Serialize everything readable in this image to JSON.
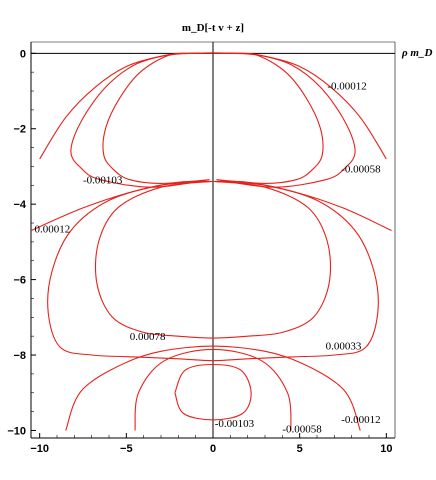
{
  "chart_data": {
    "type": "contour",
    "title": "m_D[-t v + z]",
    "xlabel": "",
    "ylabel": "",
    "horizontal_axis_name": "ρ m_D",
    "xlim": [
      -10.5,
      10.5
    ],
    "ylim": [
      -10.2,
      0.3
    ],
    "x_ticks": [
      -10,
      -5,
      0,
      5,
      10
    ],
    "y_ticks": [
      0,
      -2,
      -4,
      -6,
      -8,
      -10
    ],
    "x_tick_labels": [
      "−10",
      "−5",
      "0",
      "5",
      "10"
    ],
    "y_tick_labels": [
      "0",
      "−2",
      "−4",
      "−6",
      "−8",
      "−10"
    ],
    "grid": false,
    "line_color": "#e8201a",
    "contour_labels": [
      {
        "text": "-0.00012",
        "x": 6.6,
        "y": -0.85
      },
      {
        "text": "-0.00058",
        "x": 7.4,
        "y": -3.05
      },
      {
        "text": "-0.00103",
        "x": -7.5,
        "y": -3.35
      },
      {
        "text": "0.00012",
        "x": -10.3,
        "y": -4.65
      },
      {
        "text": "0.00078",
        "x": -4.8,
        "y": -7.5
      },
      {
        "text": "0.00033",
        "x": 6.5,
        "y": -7.75
      },
      {
        "text": "-0.00103",
        "x": 0.1,
        "y": -9.8
      },
      {
        "text": "-0.00058",
        "x": 4.0,
        "y": -9.95
      },
      {
        "text": "-0.00012",
        "x": 7.4,
        "y": -9.7
      }
    ],
    "contours": [
      {
        "level": "-0.00012 (upper)",
        "points": [
          [
            -10,
            -2.8
          ],
          [
            -8.5,
            -1.7
          ],
          [
            -6.8,
            -0.9
          ],
          [
            -5,
            -0.35
          ],
          [
            -3,
            -0.08
          ],
          [
            -1.2,
            0
          ],
          [
            1.2,
            0
          ],
          [
            3,
            -0.08
          ],
          [
            5,
            -0.35
          ],
          [
            6.8,
            -0.9
          ],
          [
            8.5,
            -1.7
          ],
          [
            10,
            -2.8
          ]
        ]
      },
      {
        "level": "-0.00058 (upper)",
        "points": [
          [
            -0.2,
            -3.35
          ],
          [
            -3.5,
            -3.55
          ],
          [
            -6.5,
            -3.35
          ],
          [
            -7.6,
            -3.05
          ],
          [
            -8.2,
            -2.6
          ],
          [
            -7.6,
            -1.8
          ],
          [
            -6.2,
            -0.9
          ],
          [
            -4.5,
            -0.3
          ],
          [
            -2.5,
            -0.03
          ],
          [
            -1.2,
            0
          ],
          [
            1.2,
            0
          ],
          [
            2.5,
            -0.03
          ],
          [
            4.5,
            -0.3
          ],
          [
            6.2,
            -0.9
          ],
          [
            7.6,
            -1.8
          ],
          [
            8.2,
            -2.6
          ],
          [
            7.6,
            -3.05
          ],
          [
            6.5,
            -3.35
          ],
          [
            3.5,
            -3.55
          ],
          [
            0.2,
            -3.35
          ]
        ]
      },
      {
        "level": "-0.00103 (upper)",
        "points": [
          [
            -0.2,
            -3.35
          ],
          [
            -3,
            -3.45
          ],
          [
            -4.8,
            -3.35
          ],
          [
            -5.7,
            -3.1
          ],
          [
            -6.3,
            -2.7
          ],
          [
            -6.2,
            -2.0
          ],
          [
            -5.4,
            -1.2
          ],
          [
            -4.2,
            -0.5
          ],
          [
            -2.6,
            -0.06
          ],
          [
            -1.2,
            0
          ],
          [
            1.2,
            0
          ],
          [
            2.6,
            -0.06
          ],
          [
            4.2,
            -0.5
          ],
          [
            5.4,
            -1.2
          ],
          [
            6.2,
            -2.0
          ],
          [
            6.3,
            -2.7
          ],
          [
            5.7,
            -3.1
          ],
          [
            4.8,
            -3.35
          ],
          [
            3,
            -3.45
          ],
          [
            0.2,
            -3.35
          ]
        ]
      },
      {
        "level": "0.00012",
        "points": [
          [
            -10.5,
            -4.7
          ],
          [
            -7.5,
            -4.1
          ],
          [
            -4.5,
            -3.65
          ],
          [
            -2,
            -3.42
          ],
          [
            0,
            -3.4
          ],
          [
            2,
            -3.42
          ],
          [
            4.5,
            -3.65
          ],
          [
            7.5,
            -4.1
          ],
          [
            10.3,
            -4.7
          ]
        ]
      },
      {
        "level": "0.00033",
        "points": [
          [
            -0.1,
            -3.4
          ],
          [
            -3,
            -3.5
          ],
          [
            -6,
            -3.9
          ],
          [
            -8.2,
            -4.7
          ],
          [
            -9.3,
            -5.8
          ],
          [
            -9.5,
            -6.9
          ],
          [
            -8.8,
            -7.8
          ],
          [
            -7,
            -8.0
          ],
          [
            -4.5,
            -8.05
          ],
          [
            -2,
            -8.1
          ],
          [
            0,
            -8.15
          ],
          [
            2,
            -8.1
          ],
          [
            4.5,
            -8.05
          ],
          [
            7,
            -8.0
          ],
          [
            8.8,
            -7.8
          ],
          [
            9.5,
            -6.9
          ],
          [
            9.3,
            -5.8
          ],
          [
            8.2,
            -4.7
          ],
          [
            6,
            -3.9
          ],
          [
            3,
            -3.5
          ],
          [
            0.1,
            -3.4
          ]
        ]
      },
      {
        "level": "0.00078",
        "points": [
          [
            -0.1,
            -3.4
          ],
          [
            -3,
            -3.55
          ],
          [
            -5.5,
            -4.1
          ],
          [
            -6.6,
            -5.0
          ],
          [
            -6.7,
            -6.1
          ],
          [
            -5.8,
            -7.0
          ],
          [
            -4,
            -7.4
          ],
          [
            -2,
            -7.5
          ],
          [
            0,
            -7.55
          ],
          [
            2,
            -7.5
          ],
          [
            4,
            -7.4
          ],
          [
            5.8,
            -7.0
          ],
          [
            6.7,
            -6.1
          ],
          [
            6.6,
            -5.0
          ],
          [
            5.5,
            -4.1
          ],
          [
            3,
            -3.55
          ],
          [
            0.1,
            -3.4
          ]
        ]
      },
      {
        "level": "-0.00103 (lower)",
        "points": [
          [
            -2.2,
            -9.0
          ],
          [
            -1.6,
            -8.4
          ],
          [
            0,
            -8.25
          ],
          [
            1.6,
            -8.4
          ],
          [
            2.2,
            -9.0
          ],
          [
            1.7,
            -9.55
          ],
          [
            0,
            -9.72
          ],
          [
            -1.7,
            -9.55
          ],
          [
            -2.2,
            -9.0
          ]
        ]
      },
      {
        "level": "-0.00058 (lower)",
        "points": [
          [
            -4.5,
            -10.0
          ],
          [
            -4.3,
            -9.0
          ],
          [
            -2.8,
            -8.15
          ],
          [
            0,
            -7.85
          ],
          [
            2.8,
            -8.15
          ],
          [
            4.3,
            -9.0
          ],
          [
            4.5,
            -10.0
          ]
        ]
      },
      {
        "level": "-0.00012 (lower)",
        "points": [
          [
            -8.5,
            -10.0
          ],
          [
            -7.5,
            -8.9
          ],
          [
            -4.5,
            -8.1
          ],
          [
            -1.5,
            -7.8
          ],
          [
            1.5,
            -7.8
          ],
          [
            4.5,
            -8.1
          ],
          [
            7.5,
            -8.9
          ],
          [
            8.5,
            -10.0
          ]
        ]
      }
    ]
  }
}
